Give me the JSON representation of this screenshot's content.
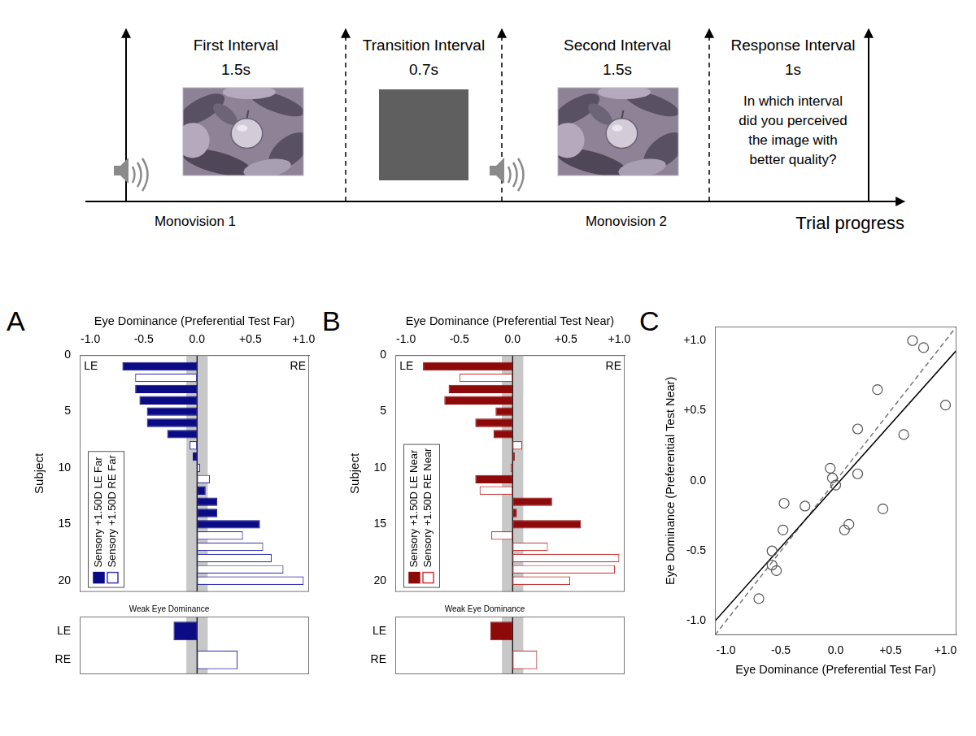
{
  "diagram": {
    "intervals": [
      {
        "title": "First Interval",
        "duration": "1.5s",
        "caption": "Monovision 1"
      },
      {
        "title": "Transition Interval",
        "duration": "0.7s"
      },
      {
        "title": "Second Interval",
        "duration": "1.5s",
        "caption": "Monovision 2"
      },
      {
        "title": "Response Interval",
        "duration": "1s",
        "question": "In which interval did you perceived the image with better quality?"
      }
    ],
    "axis_label": "Trial progress"
  },
  "chart_data": [
    {
      "panel": "A",
      "type": "bar",
      "orientation": "horizontal",
      "x_label": "Eye Dominance (Preferential Test Far)",
      "y_label": "Subject",
      "xlim": [
        -1.1,
        1.05
      ],
      "xticks": [
        {
          "value": -1,
          "label": "-1.0"
        },
        {
          "value": -0.5,
          "label": "-0.5"
        },
        {
          "value": 0,
          "label": "0.0"
        },
        {
          "value": 0.5,
          "label": "+0.5"
        },
        {
          "value": 1,
          "label": "+1.0"
        }
      ],
      "ylim": [
        0,
        21
      ],
      "yticks": [
        0,
        5,
        10,
        15,
        20
      ],
      "y": [
        1,
        2,
        3,
        4,
        5,
        6,
        7,
        8,
        9,
        10,
        11,
        12,
        13,
        14,
        15,
        16,
        17,
        18,
        19,
        20
      ],
      "band": [
        -0.1,
        0.1
      ],
      "annotations": [
        {
          "text": "LE",
          "x": -1.06,
          "y": 1
        },
        {
          "text": "RE",
          "x": 1.02,
          "y": 1
        }
      ],
      "legend": "lower left",
      "series": [
        {
          "name": "Sensory +1.50D LE Far",
          "color": "#0b0b86",
          "marker": "filled",
          "values": [
            -0.7,
            null,
            -0.58,
            -0.54,
            -0.47,
            -0.47,
            -0.28,
            null,
            -0.04,
            null,
            null,
            0.08,
            0.19,
            0.19,
            0.59,
            null,
            null,
            null,
            null,
            null
          ]
        },
        {
          "name": "Sensory +1.50D RE Far",
          "color": "#3535b0",
          "marker": "open",
          "values": [
            null,
            -0.58,
            null,
            null,
            null,
            null,
            null,
            -0.07,
            null,
            0.03,
            0.12,
            null,
            null,
            null,
            null,
            0.43,
            0.62,
            0.7,
            0.81,
            1.0
          ]
        }
      ],
      "subpanel": {
        "type": "bar",
        "orientation": "horizontal",
        "title": "Weak Eye Dominance",
        "categories": [
          "LE",
          "RE"
        ],
        "xlim": [
          -1.1,
          1.05
        ],
        "band": [
          -0.1,
          0.1
        ],
        "tick_labels": "y",
        "series": [
          {
            "color": "#0b0b86",
            "marker": "filled",
            "values": [
              -0.22,
              null
            ]
          },
          {
            "color": "#3535b0",
            "marker": "open",
            "values": [
              null,
              0.38
            ]
          }
        ]
      }
    },
    {
      "panel": "B",
      "type": "bar",
      "orientation": "horizontal",
      "x_label": "Eye Dominance (Preferential Test Near)",
      "y_label": "Subject",
      "xlim": [
        -1.1,
        1.05
      ],
      "xticks": [
        {
          "value": -1,
          "label": "-1.0"
        },
        {
          "value": -0.5,
          "label": "-0.5"
        },
        {
          "value": 0,
          "label": "0.0"
        },
        {
          "value": 0.5,
          "label": "+0.5"
        },
        {
          "value": 1,
          "label": "+1.0"
        }
      ],
      "ylim": [
        0,
        21
      ],
      "yticks": [
        0,
        5,
        10,
        15,
        20
      ],
      "y": [
        1,
        2,
        3,
        4,
        5,
        6,
        7,
        8,
        9,
        10,
        11,
        12,
        13,
        14,
        15,
        16,
        17,
        18,
        19,
        20
      ],
      "band": [
        -0.1,
        0.1
      ],
      "annotations": [
        {
          "text": "LE",
          "x": -1.06,
          "y": 1
        },
        {
          "text": "RE",
          "x": 1.02,
          "y": 1
        }
      ],
      "legend": "lower left",
      "series": [
        {
          "name": "Sensory +1.50D LE Near",
          "color": "#8e0a0a",
          "marker": "filled",
          "values": [
            -0.84,
            null,
            -0.6,
            -0.64,
            -0.16,
            -0.35,
            -0.18,
            null,
            0.02,
            null,
            -0.35,
            null,
            0.37,
            0.04,
            0.64,
            null,
            null,
            null,
            null,
            null
          ]
        },
        {
          "name": "Sensory +1.50D RE Near",
          "color": "#c83a3a",
          "marker": "open",
          "values": [
            null,
            -0.5,
            null,
            null,
            null,
            null,
            null,
            0.09,
            null,
            -0.02,
            null,
            -0.31,
            null,
            null,
            null,
            -0.2,
            0.33,
            1.0,
            0.96,
            0.54
          ]
        }
      ],
      "subpanel": {
        "type": "bar",
        "orientation": "horizontal",
        "title": "Weak Eye Dominance",
        "categories": [
          "LE",
          "RE"
        ],
        "xlim": [
          -1.1,
          1.05
        ],
        "band": [
          -0.1,
          0.1
        ],
        "tick_labels": "y",
        "series": [
          {
            "color": "#8e0a0a",
            "marker": "filled",
            "values": [
              -0.21,
              null
            ]
          },
          {
            "color": "#c83a3a",
            "marker": "open",
            "values": [
              null,
              0.23
            ]
          }
        ]
      }
    },
    {
      "panel": "C",
      "type": "scatter",
      "x_label": "Eye Dominance (Preferential Test Far)",
      "y_label": "Eye Dominance (Preferential Test Near)",
      "xlim": [
        -1.1,
        1.1
      ],
      "ylim": [
        -1.1,
        1.1
      ],
      "xticks": [
        {
          "value": -1,
          "label": "-1.0"
        },
        {
          "value": -0.5,
          "label": "-0.5"
        },
        {
          "value": 0,
          "label": "0.0"
        },
        {
          "value": 0.5,
          "label": "+0.5"
        },
        {
          "value": 1,
          "label": "+1.0"
        }
      ],
      "yticks": [
        {
          "value": -1,
          "label": "-1.0"
        },
        {
          "value": -0.5,
          "label": "-0.5"
        },
        {
          "value": 0,
          "label": "0.0"
        },
        {
          "value": 0.5,
          "label": "+0.5"
        },
        {
          "value": 1,
          "label": "+1.0"
        }
      ],
      "series": [
        {
          "type": "scatter",
          "marker": "circle",
          "color": "#555555",
          "x": [
            -0.7,
            -0.58,
            -0.58,
            -0.54,
            -0.47,
            -0.48,
            -0.28,
            -0.05,
            -0.03,
            0.0,
            0.08,
            0.12,
            0.2,
            0.2,
            0.38,
            0.43,
            0.62,
            0.7,
            0.8,
            1.0
          ],
          "values": [
            -0.84,
            -0.5,
            -0.6,
            -0.64,
            -0.16,
            -0.35,
            -0.18,
            0.09,
            0.02,
            -0.03,
            -0.35,
            -0.31,
            0.37,
            0.05,
            0.65,
            -0.2,
            0.33,
            1.0,
            0.95,
            0.54
          ]
        },
        {
          "type": "line",
          "line_style": "solid",
          "color": "#000000",
          "x": [
            -1.1,
            1.1
          ],
          "values": [
            -1.0,
            0.93
          ]
        },
        {
          "type": "line",
          "line_style": "dashed",
          "color": "#777777",
          "x": [
            -1.1,
            1.1
          ],
          "values": [
            -1.1,
            1.1
          ]
        }
      ]
    }
  ]
}
